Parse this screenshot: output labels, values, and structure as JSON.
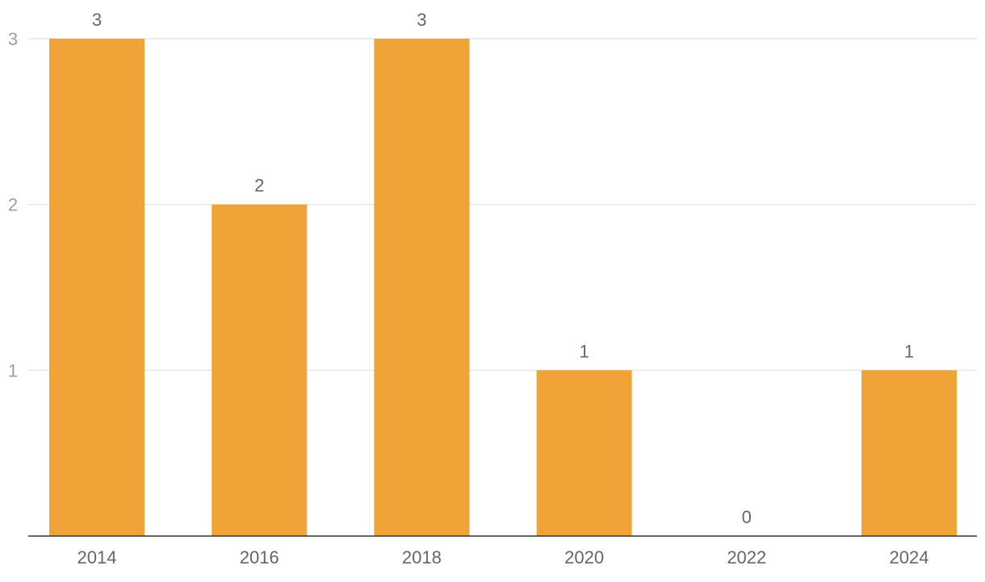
{
  "chart_data": {
    "type": "bar",
    "categories": [
      "2014",
      "2016",
      "2018",
      "2020",
      "2022",
      "2024"
    ],
    "values": [
      3,
      2,
      3,
      1,
      0,
      1
    ],
    "yticks": [
      1,
      2,
      3
    ],
    "ylim": [
      0,
      3
    ],
    "grid": true,
    "data_labels": true,
    "bar_color": "#f0a337"
  }
}
